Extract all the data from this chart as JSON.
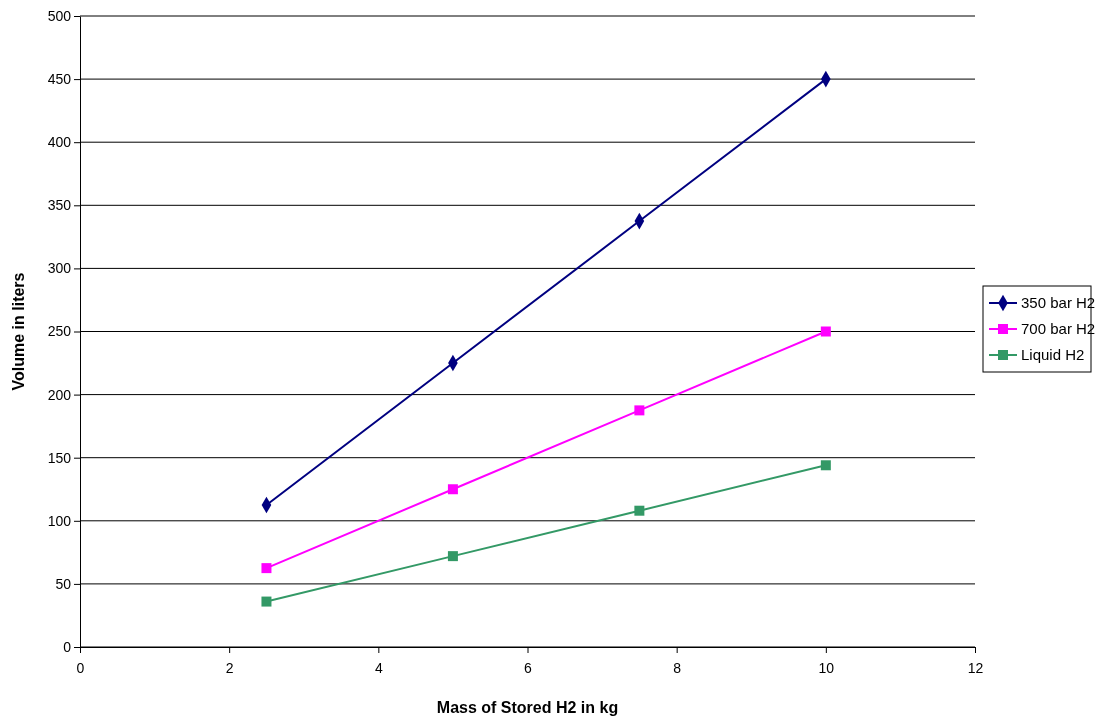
{
  "chart_data": {
    "type": "line",
    "xlabel": "Mass of Stored H2 in kg",
    "ylabel": "Volume in liters",
    "x": [
      2.5,
      5,
      7.5,
      10
    ],
    "series": [
      {
        "name": "350 bar H2",
        "color": "#000080",
        "marker": "diamond",
        "values": [
          112.5,
          225,
          337.5,
          450
        ]
      },
      {
        "name": "700 bar H2",
        "color": "#ff00ff",
        "marker": "square",
        "values": [
          62.5,
          125,
          187.5,
          250
        ]
      },
      {
        "name": "Liquid H2",
        "color": "#339966",
        "marker": "square",
        "values": [
          36,
          72,
          108,
          144
        ]
      }
    ],
    "xlim": [
      0,
      12
    ],
    "xticks": [
      0,
      2,
      4,
      6,
      8,
      10,
      12
    ],
    "ylim": [
      0,
      500
    ],
    "yticks": [
      0,
      50,
      100,
      150,
      200,
      250,
      300,
      350,
      400,
      450,
      500
    ],
    "grid": "y",
    "legend": "right"
  }
}
